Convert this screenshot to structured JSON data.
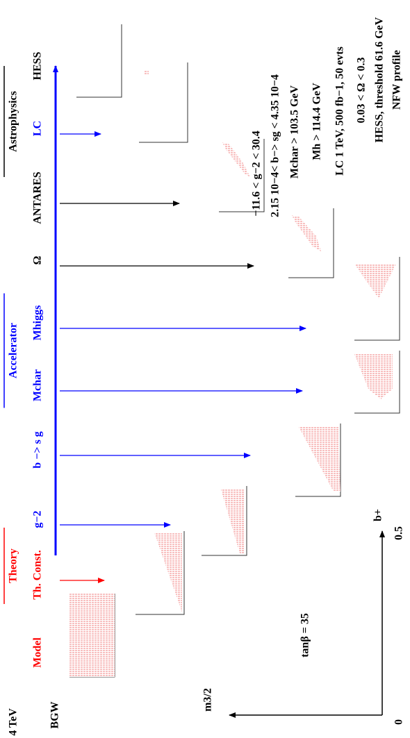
{
  "headers": [
    "Theory",
    "Accelerator",
    "Astrophysics"
  ],
  "stages": [
    "Model",
    "Th. Const.",
    "g−2",
    "b −> s g",
    "Mchar",
    "Mhiggs",
    "Ω",
    "ANTARES",
    "LC",
    "HESS"
  ],
  "cuts": [
    "−11.6 < g−2 < 30.4",
    "2.15 10−4< b−> sg < 4.35 10−4",
    "Mchar > 103.5 GeV",
    "Mh > 114.4 GeV",
    "LC 1 TeV, 500 fb−1, 50 evts",
    "0.03 < Ω < 0.3",
    "HESS, threshold  61.6 GeV",
    "NFW profile"
  ],
  "model_name": "BGW",
  "parameter": "tanβ = 35",
  "axes": {
    "y_label": "m3/2",
    "y_max": "4 TeV",
    "x_label": "b+",
    "x_max": "0.5",
    "origin": "0"
  }
}
